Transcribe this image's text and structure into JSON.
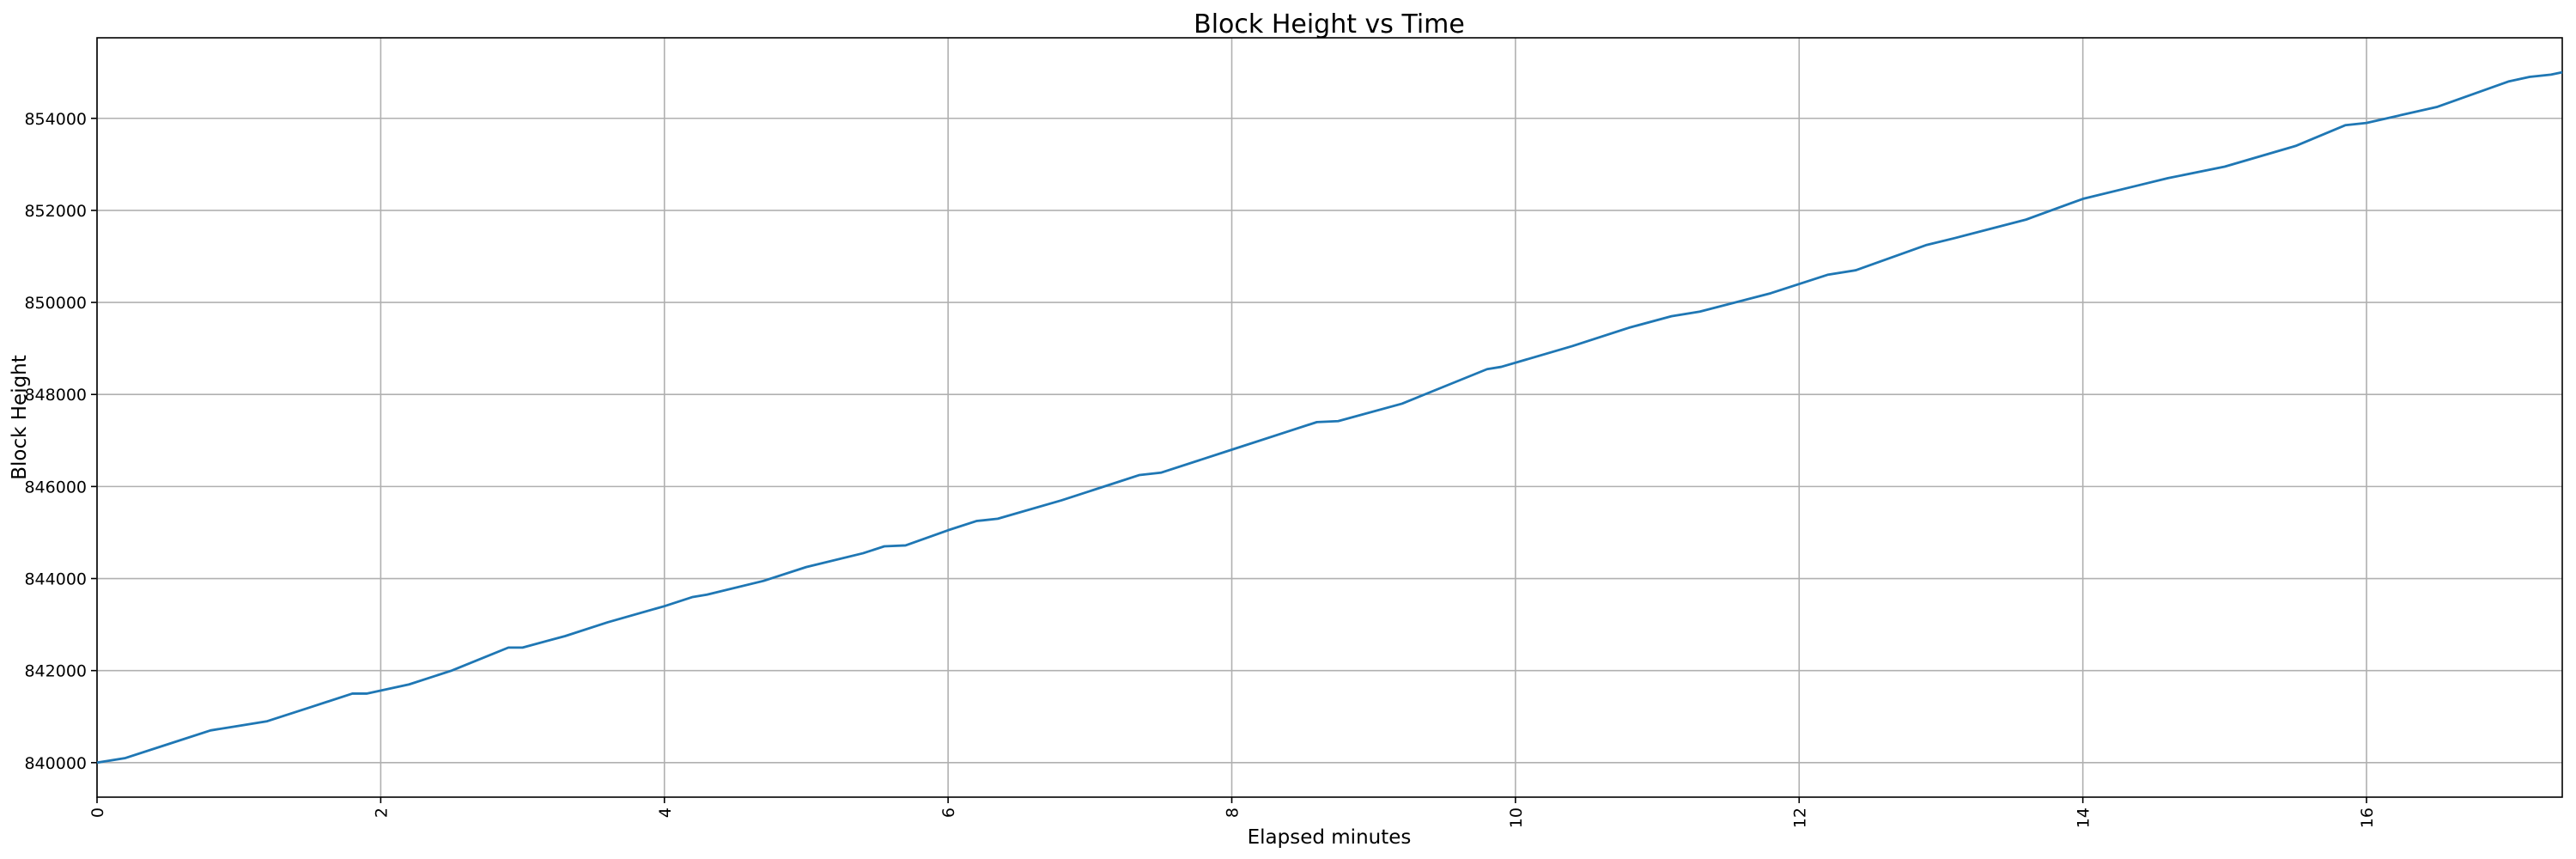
{
  "chart_data": {
    "type": "line",
    "title": "Block Height vs Time",
    "xlabel": "Elapsed minutes",
    "ylabel": "Block Height",
    "x": [
      0,
      0.2,
      0.5,
      0.8,
      1.0,
      1.2,
      1.5,
      1.8,
      1.9,
      2.2,
      2.5,
      2.9,
      3.0,
      3.3,
      3.6,
      4.0,
      4.2,
      4.3,
      4.7,
      5.0,
      5.4,
      5.55,
      5.7,
      6.0,
      6.2,
      6.35,
      6.8,
      7.2,
      7.35,
      7.5,
      8.0,
      8.4,
      8.6,
      8.75,
      9.2,
      9.6,
      9.8,
      9.9,
      10.4,
      10.8,
      11.1,
      11.3,
      11.8,
      12.2,
      12.4,
      12.9,
      13.1,
      13.6,
      14.0,
      14.4,
      14.6,
      15.0,
      15.5,
      15.85,
      16.0,
      16.5,
      17.0,
      17.15,
      17.3,
      17.38
    ],
    "series": [
      {
        "name": "Block Height",
        "color": "#1f77b4",
        "values": [
          840000,
          840100,
          840400,
          840700,
          840800,
          840900,
          841200,
          841500,
          841500,
          841700,
          842000,
          842500,
          842500,
          842750,
          843050,
          843400,
          843600,
          843650,
          843950,
          844250,
          844550,
          844700,
          844720,
          845050,
          845250,
          845300,
          845700,
          846100,
          846250,
          846300,
          846800,
          847200,
          847400,
          847420,
          847800,
          848300,
          848550,
          848600,
          849050,
          849450,
          849700,
          849800,
          850200,
          850600,
          850700,
          851250,
          851400,
          851800,
          852250,
          852550,
          852700,
          852950,
          853400,
          853850,
          853900,
          854250,
          854800,
          854900,
          854950,
          855000
        ]
      }
    ],
    "xlim": [
      0,
      17.38
    ],
    "ylim": [
      839250,
      855750
    ],
    "xticks": [
      0,
      2,
      4,
      6,
      8,
      10,
      12,
      14,
      16
    ],
    "yticks": [
      840000,
      842000,
      844000,
      846000,
      848000,
      850000,
      852000,
      854000
    ],
    "grid": true
  }
}
